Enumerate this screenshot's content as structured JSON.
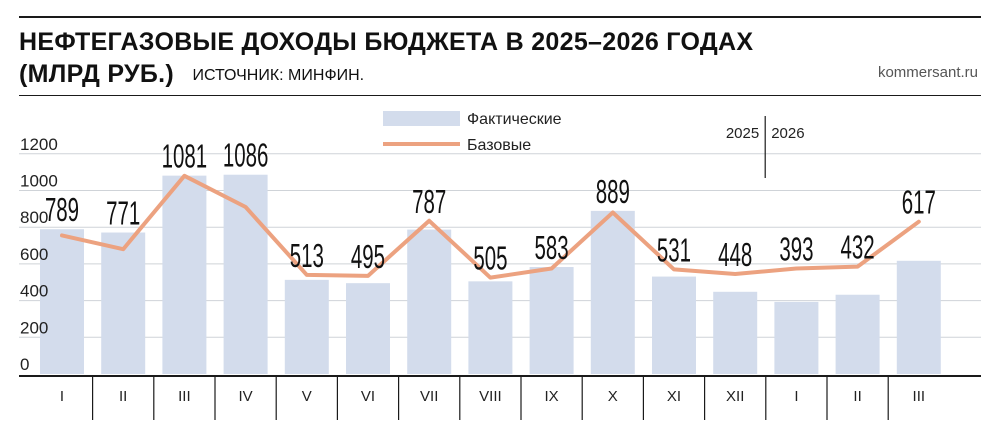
{
  "header": {
    "title": "НЕФТЕГАЗОВЫЕ ДОХОДЫ БЮДЖЕТА В 2025–2026 ГОДАХ",
    "unit": "(МЛРД РУБ.)",
    "source": "ИСТОЧНИК: МИНФИН.",
    "brand": "kommersant.ru"
  },
  "colors": {
    "bar": "#d3dcec",
    "line": "#eca280",
    "axis": "#1a1a1a",
    "grid": "#cfd3d8"
  },
  "chart_data": {
    "type": "bar",
    "categories": [
      "I",
      "II",
      "III",
      "IV",
      "V",
      "VI",
      "VII",
      "VIII",
      "IX",
      "X",
      "XI",
      "XII",
      "I",
      "II",
      "III"
    ],
    "years": [
      "2025",
      "2026"
    ],
    "year_split_after_index": 11,
    "series": [
      {
        "name": "Фактические",
        "type": "bar",
        "values": [
          789,
          771,
          1081,
          1086,
          513,
          495,
          787,
          505,
          583,
          889,
          531,
          448,
          393,
          432,
          617
        ]
      },
      {
        "name": "Базовые",
        "type": "line",
        "values": [
          755,
          680,
          1080,
          910,
          540,
          535,
          835,
          525,
          575,
          880,
          570,
          545,
          575,
          585,
          830
        ]
      }
    ],
    "data_labels": [
      "789",
      "771",
      "1081",
      "1086",
      "513",
      "495",
      "787",
      "505",
      "583",
      "889",
      "531",
      "448",
      "393",
      "432",
      "617"
    ],
    "yticks": [
      "0",
      "200",
      "400",
      "600",
      "800",
      "1000",
      "1200"
    ],
    "ylim": [
      0,
      1200
    ],
    "grid": true,
    "legend_position": "top-center"
  }
}
